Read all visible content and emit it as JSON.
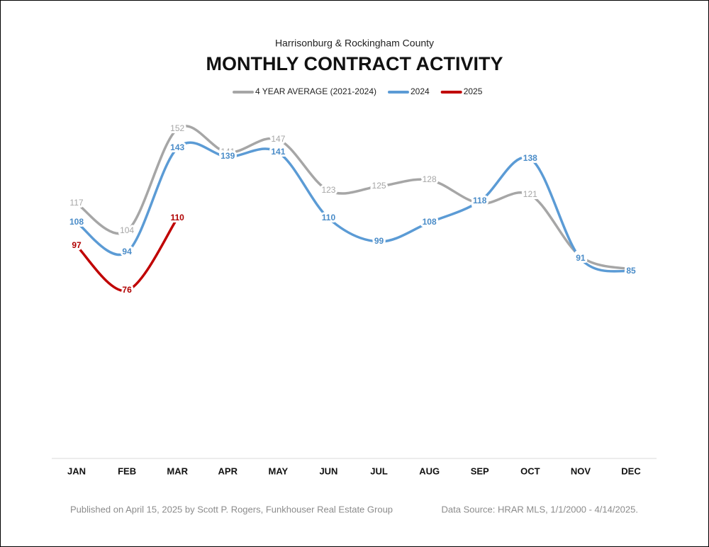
{
  "chart_data": {
    "type": "line",
    "subtitle": "Harrisonburg & Rockingham County",
    "title": "MONTHLY CONTRACT ACTIVITY",
    "categories": [
      "JAN",
      "FEB",
      "MAR",
      "APR",
      "MAY",
      "JUN",
      "JUL",
      "AUG",
      "SEP",
      "OCT",
      "NOV",
      "DEC"
    ],
    "series": [
      {
        "name": "4 YEAR AVERAGE (2021-2024)",
        "color": "#a6a6a6",
        "values": [
          117,
          104,
          152,
          141,
          147,
          123,
          125,
          128,
          117,
          121,
          92,
          86
        ]
      },
      {
        "name": "2024",
        "color": "#5b9bd5",
        "values": [
          108,
          94,
          143,
          139,
          141,
          110,
          99,
          108,
          118,
          138,
          91,
          85
        ]
      },
      {
        "name": "2025",
        "color": "#c00000",
        "values": [
          97,
          76,
          110,
          null,
          null,
          null,
          null,
          null,
          null,
          null,
          null,
          null
        ]
      }
    ],
    "ylim": [
      0,
      160
    ],
    "legend": "top",
    "footer_left": "Published on April 15, 2025 by Scott P. Rogers, Funkhouser Real Estate Group",
    "footer_right": "Data Source: HRAR MLS, 1/1/2000 - 4/14/2025."
  }
}
